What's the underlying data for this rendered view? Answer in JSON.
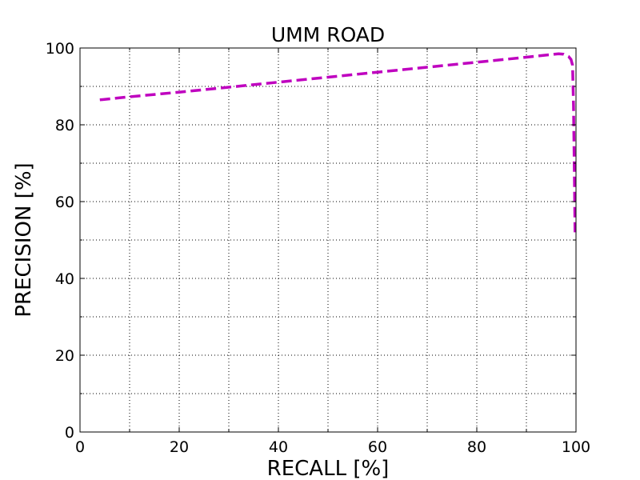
{
  "chart_data": {
    "type": "line",
    "title": "UMM ROAD",
    "xlabel": "RECALL [%]",
    "ylabel": "PRECISION [%]",
    "xlim": [
      0,
      100
    ],
    "ylim": [
      0,
      100
    ],
    "xticks": [
      0,
      20,
      40,
      60,
      80,
      100
    ],
    "yticks": [
      0,
      20,
      40,
      60,
      80,
      100
    ],
    "xticks_minor": [
      10,
      30,
      50,
      70,
      90
    ],
    "yticks_minor": [
      10,
      30,
      50,
      70,
      90
    ],
    "grid": true,
    "series": [
      {
        "color": "#bf00bf",
        "linestyle": "dashed",
        "x": [
          4,
          10,
          20,
          30,
          40,
          50,
          60,
          70,
          80,
          90,
          96.5,
          97.5,
          98.5,
          99.0,
          99.3,
          99.5,
          99.7,
          99.8
        ],
        "y": [
          86.5,
          87.3,
          88.5,
          89.8,
          91.1,
          92.4,
          93.7,
          95.0,
          96.3,
          97.6,
          98.5,
          98.4,
          97.8,
          97.0,
          95.5,
          85.0,
          65.0,
          52.0
        ]
      }
    ]
  }
}
